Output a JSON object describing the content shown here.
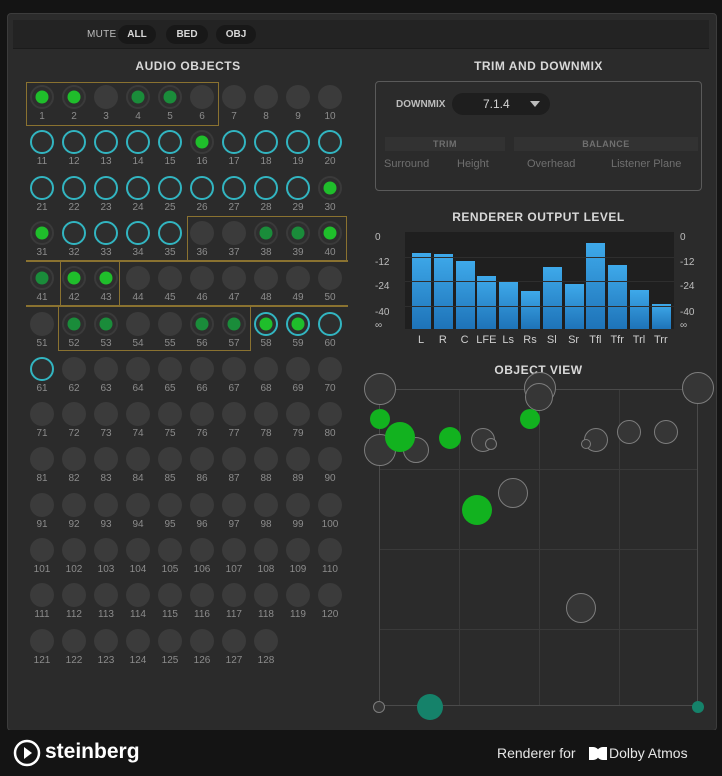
{
  "toolbar": {
    "mute_label": "MUTE",
    "all_label": "ALL",
    "bed_label": "BED",
    "obj_label": "OBJ"
  },
  "audio_objects": {
    "title": "AUDIO OBJECTS",
    "count": 128
  },
  "trim": {
    "title": "TRIM AND DOWNMIX",
    "downmix_label": "DOWNMIX",
    "downmix_value": "7.1.4",
    "trim_header": "TRIM",
    "balance_header": "BALANCE",
    "surround": "Surround",
    "height": "Height",
    "overhead": "Overhead",
    "listener_plane": "Listener Plane"
  },
  "meter": {
    "title": "RENDERER OUTPUT LEVEL",
    "scale": [
      "0",
      "-12",
      "-24",
      "-40",
      "∞"
    ],
    "channels": [
      "L",
      "R",
      "C",
      "LFE",
      "Ls",
      "Rs",
      "Sl",
      "Sr",
      "Tfl",
      "Tfr",
      "Trl",
      "Trr"
    ],
    "levels": [
      0.84,
      0.82,
      0.75,
      0.58,
      0.53,
      0.42,
      0.68,
      0.49,
      0.95,
      0.7,
      0.43,
      0.28
    ],
    "bar_color": "#3aa3e6"
  },
  "object_view": {
    "title": "OBJECT VIEW"
  },
  "footer": {
    "brand": "steinberg",
    "renderer_for": "Renderer for",
    "dolby": "Dolby Atmos"
  }
}
